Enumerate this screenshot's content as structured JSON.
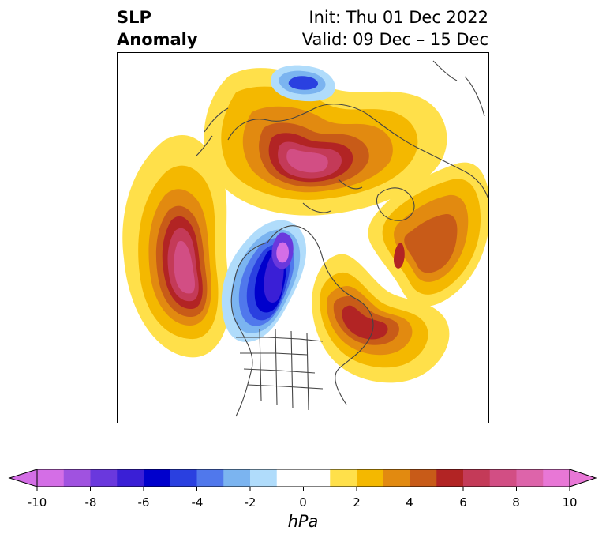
{
  "title": {
    "left_line1": "SLP",
    "left_line2": "Anomaly",
    "init": "Init: Thu 01 Dec 2022",
    "valid": "Valid: 09 Dec – 15 Dec"
  },
  "map": {
    "projection": "north-polar-stereographic",
    "features": [
      "coastlines",
      "country-borders",
      "us-state-borders"
    ],
    "anomaly_centers": [
      {
        "name": "north-pacific-high",
        "sign": "positive",
        "peak_hpa": 9
      },
      {
        "name": "siberia-arctic-high",
        "sign": "positive",
        "peak_hpa": 9
      },
      {
        "name": "western-canada-low",
        "sign": "negative",
        "peak_hpa": -10
      },
      {
        "name": "labrador-high",
        "sign": "positive",
        "peak_hpa": 7
      },
      {
        "name": "greenland-east-high",
        "sign": "positive",
        "peak_hpa": 7
      },
      {
        "name": "mediterranean-low",
        "sign": "negative",
        "peak_hpa": -6
      }
    ]
  },
  "colorbar": {
    "unit": "hPa",
    "min": -10,
    "max": 10,
    "step": 1,
    "ticks": [
      "-10",
      "-8",
      "-6",
      "-4",
      "-2",
      "0",
      "2",
      "4",
      "6",
      "8",
      "10"
    ],
    "extend": "both",
    "colors": [
      "#d46ee6",
      "#a052e0",
      "#6a38dd",
      "#3a1fd6",
      "#0000cc",
      "#2a40e0",
      "#5078ec",
      "#7bb4f0",
      "#b0dcfb",
      "#ffffff",
      "#ffffff",
      "#ffe04a",
      "#f4b800",
      "#e28a10",
      "#c85b18",
      "#b22424",
      "#c43a58",
      "#d24e84",
      "#dd64aa",
      "#e877d6"
    ],
    "under_color": "#d46ee6",
    "over_color": "#e877d6"
  }
}
